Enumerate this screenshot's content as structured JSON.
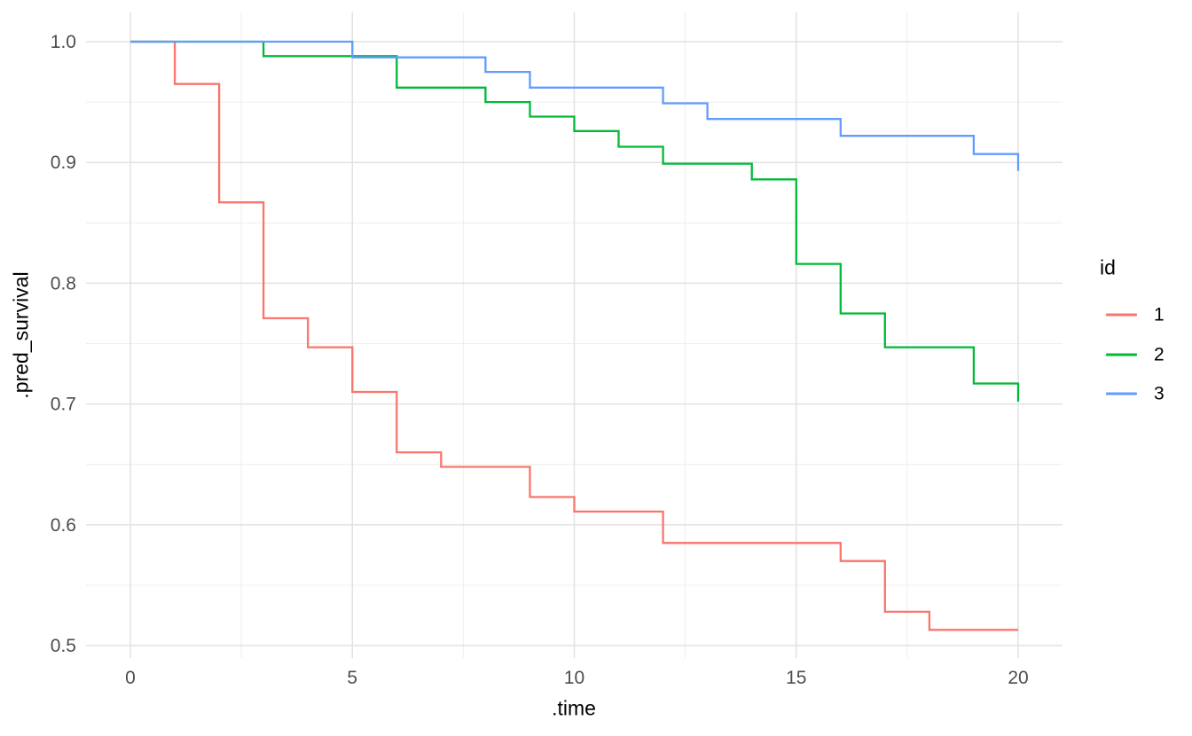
{
  "chart": {
    "y_axis_title": ".pred_survival",
    "x_axis_title": ".time",
    "legend": {
      "title": "id",
      "entries": [
        {
          "label": "1",
          "color": "#F8766D"
        },
        {
          "label": "2",
          "color": "#00BA38"
        },
        {
          "label": "3",
          "color": "#619CFF"
        }
      ]
    }
  },
  "chart_data": {
    "type": "line",
    "subtype": "step-after-survival-curves",
    "title": "",
    "xlabel": ".time",
    "ylabel": ".pred_survival",
    "xlim": [
      0,
      20
    ],
    "ylim": [
      0.5,
      1.0
    ],
    "grid": "on",
    "legend_position": "right",
    "legend_title": "id",
    "x_major_ticks": {
      "values": [
        0,
        5,
        10,
        15,
        20
      ],
      "labels": [
        "0",
        "5",
        "10",
        "15",
        "20"
      ]
    },
    "x_minor_gridlines": [
      2.5,
      7.5,
      12.5,
      17.5
    ],
    "y_major_ticks": {
      "values": [
        1.0,
        0.9,
        0.8,
        0.7,
        0.6,
        0.5
      ],
      "labels": [
        "1.0",
        "0.9",
        "0.8",
        "0.7",
        "0.6",
        "0.5"
      ]
    },
    "y_minor_gridlines": [
      0.95,
      0.85,
      0.75,
      0.65,
      0.55
    ],
    "series": [
      {
        "name": "1",
        "color": "#F8766D",
        "step": "hv",
        "points": [
          [
            0,
            1.0
          ],
          [
            1,
            0.965
          ],
          [
            2,
            0.867
          ],
          [
            3,
            0.771
          ],
          [
            4,
            0.747
          ],
          [
            5,
            0.71
          ],
          [
            6,
            0.66
          ],
          [
            7,
            0.648
          ],
          [
            9,
            0.623
          ],
          [
            10,
            0.611
          ],
          [
            12,
            0.585
          ],
          [
            16,
            0.57
          ],
          [
            17,
            0.528
          ],
          [
            18,
            0.513
          ],
          [
            20,
            0.513
          ]
        ]
      },
      {
        "name": "2",
        "color": "#00BA38",
        "step": "hv",
        "points": [
          [
            0,
            1.0
          ],
          [
            3,
            0.988
          ],
          [
            6,
            0.962
          ],
          [
            8,
            0.95
          ],
          [
            9,
            0.938
          ],
          [
            10,
            0.926
          ],
          [
            11,
            0.913
          ],
          [
            12,
            0.899
          ],
          [
            14,
            0.886
          ],
          [
            15,
            0.816
          ],
          [
            16,
            0.775
          ],
          [
            17,
            0.747
          ],
          [
            19,
            0.717
          ],
          [
            20,
            0.702
          ]
        ]
      },
      {
        "name": "3",
        "color": "#619CFF",
        "step": "hv",
        "points": [
          [
            0,
            1.0
          ],
          [
            5,
            0.987
          ],
          [
            8,
            0.975
          ],
          [
            9,
            0.962
          ],
          [
            12,
            0.949
          ],
          [
            13,
            0.936
          ],
          [
            16,
            0.922
          ],
          [
            19,
            0.907
          ],
          [
            20,
            0.893
          ]
        ]
      }
    ],
    "style": {
      "major_grid_color": "#E2E2E2",
      "minor_grid_color": "#ECECEC",
      "tick_label_color": "#4D4D4D",
      "axis_title_color": "#000000",
      "background": "#FFFFFF",
      "line_width": 2.3
    }
  }
}
